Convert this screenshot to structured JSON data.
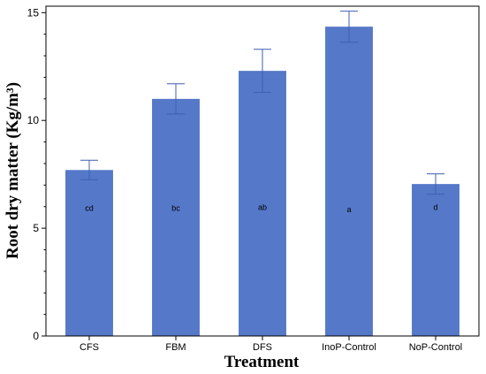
{
  "chart_data": {
    "type": "bar",
    "categories": [
      "CFS",
      "FBM",
      "DFS",
      "InoP-Control",
      "NoP-Control"
    ],
    "values": [
      7.7,
      11.0,
      12.3,
      14.35,
      7.05
    ],
    "errors": [
      0.45,
      0.7,
      1.0,
      0.72,
      0.47
    ],
    "annotations": [
      "cd",
      "bc",
      "ab",
      "a",
      "d"
    ],
    "annotation_y": [
      5.8,
      5.8,
      5.85,
      5.75,
      5.85
    ],
    "xlabel": "Treatment",
    "ylabel": "Root dry matter (Kg/m³)",
    "ylim": [
      0,
      15.3
    ],
    "yticks": [
      0,
      5,
      10,
      15
    ],
    "minor_step": 1,
    "bar_color": "#5578c8",
    "error_color": "#3f5fb0",
    "grid": false
  }
}
